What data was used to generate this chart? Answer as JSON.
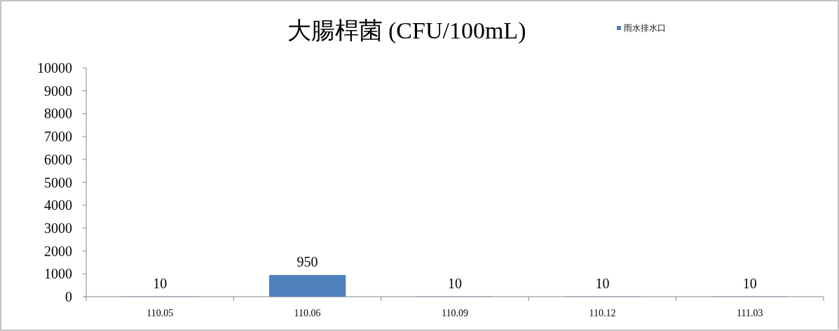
{
  "chart_data": {
    "type": "bar",
    "title": "大腸桿菌 (CFU/100mL)",
    "categories": [
      "110.05",
      "110.06",
      "110.09",
      "110.12",
      "111.03"
    ],
    "series": [
      {
        "name": "雨水排水口",
        "color": "#4f81bd",
        "values": [
          10,
          950,
          10,
          10,
          10
        ]
      }
    ],
    "ylim": [
      0,
      10000
    ],
    "yticks": [
      0,
      1000,
      2000,
      3000,
      4000,
      5000,
      6000,
      7000,
      8000,
      9000,
      10000
    ],
    "data_labels": true,
    "legend": "top right",
    "grid": false
  }
}
